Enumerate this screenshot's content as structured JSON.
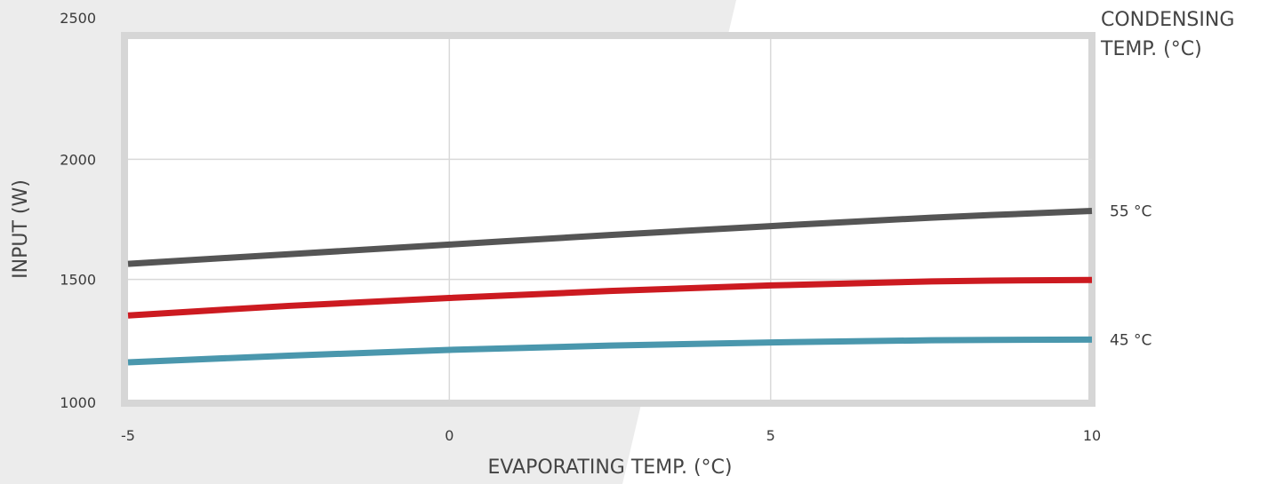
{
  "chart_data": {
    "type": "line",
    "xlabel": "EVAPORATING TEMP. (°C)",
    "ylabel": "INPUT (W)",
    "xlim": [
      -5,
      10
    ],
    "ylim": [
      1000,
      2500
    ],
    "x_ticks": [
      -5,
      0,
      5,
      10
    ],
    "y_ticks": [
      1000,
      1500,
      2000,
      2500
    ],
    "grid": true,
    "legend_title": [
      "CONDENSING",
      "TEMP. (°C)"
    ],
    "series": [
      {
        "name": "55 °C",
        "color": "#555555",
        "x": [
          -5,
          -2.5,
          0,
          2.5,
          5,
          7.5,
          10
        ],
        "y": [
          1565,
          1605,
          1645,
          1685,
          1722,
          1757,
          1785
        ]
      },
      {
        "name": "",
        "color": "#cc1a20",
        "x": [
          -5,
          -2.5,
          0,
          2.5,
          5,
          7.5,
          10
        ],
        "y": [
          1350,
          1390,
          1423,
          1452,
          1475,
          1492,
          1498
        ]
      },
      {
        "name": "45 °C",
        "color": "#4a97ad",
        "x": [
          -5,
          -2.5,
          0,
          2.5,
          5,
          7.5,
          10
        ],
        "y": [
          1155,
          1183,
          1207,
          1225,
          1238,
          1247,
          1250
        ]
      }
    ]
  }
}
